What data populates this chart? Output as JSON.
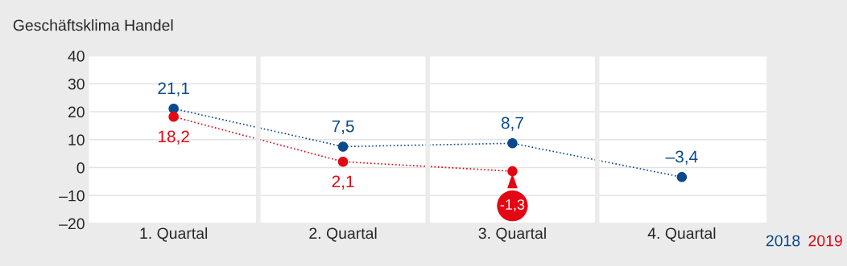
{
  "chart_data": {
    "type": "line",
    "title": "Geschäftsklima Handel",
    "categories": [
      "1. Quartal",
      "2. Quartal",
      "3. Quartal",
      "4. Quartal"
    ],
    "series": [
      {
        "name": "2018",
        "color": "#0a4a8a",
        "values": [
          21.1,
          7.5,
          8.7,
          -3.4
        ],
        "value_labels": [
          "21,1",
          "7,5",
          "8,7",
          "–3,4"
        ]
      },
      {
        "name": "2019",
        "color": "#e30613",
        "values": [
          18.2,
          2.1,
          -1.3,
          null
        ],
        "value_labels": [
          "18,2",
          "2,1",
          "-1,3",
          null
        ]
      }
    ],
    "ylim": [
      -20,
      40
    ],
    "yticks": [
      {
        "value": -20,
        "label": "–20"
      },
      {
        "value": -10,
        "label": "–10"
      },
      0,
      10,
      20,
      30,
      40
    ],
    "grid": true,
    "legend": "bottom right",
    "marker": "circle",
    "line_style": "dotted"
  }
}
